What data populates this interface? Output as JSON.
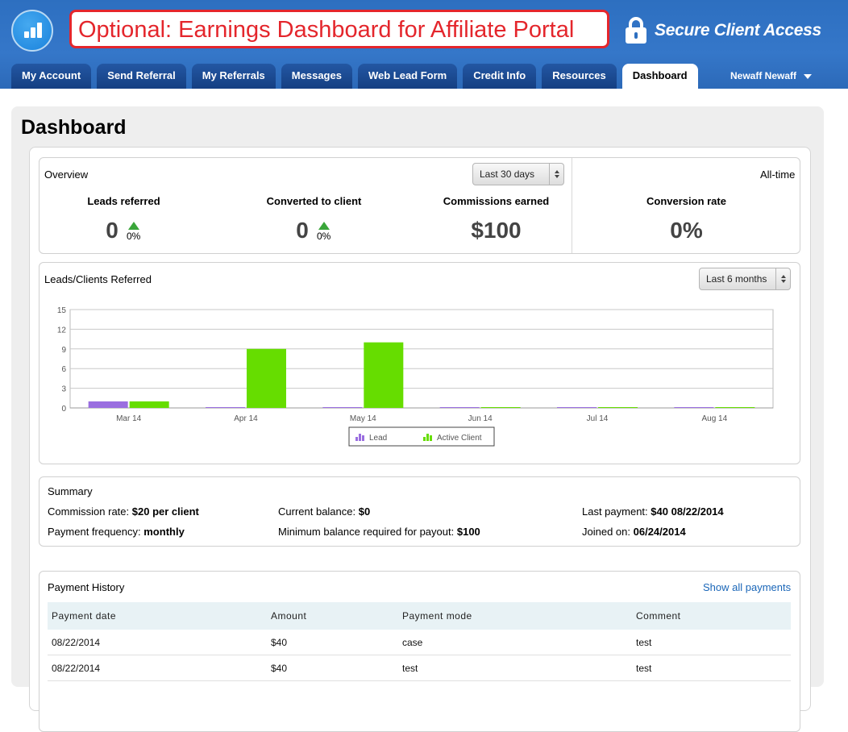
{
  "header": {
    "title": "Optional: Earnings Dashboard for Affiliate Portal",
    "secure_label": "Secure Client Access",
    "user_name": "Newaff Newaff"
  },
  "tabs": [
    {
      "label": "My Account"
    },
    {
      "label": "Send Referral"
    },
    {
      "label": "My Referrals"
    },
    {
      "label": "Messages"
    },
    {
      "label": "Web Lead Form"
    },
    {
      "label": "Credit Info"
    },
    {
      "label": "Resources"
    },
    {
      "label": "Dashboard",
      "active": true
    }
  ],
  "page_title": "Dashboard",
  "overview": {
    "label": "Overview",
    "period_select": "Last 30 days",
    "alltime_label": "All-time",
    "leads_referred": {
      "label": "Leads referred",
      "value": "0",
      "change": "0%"
    },
    "converted": {
      "label": "Converted to client",
      "value": "0",
      "change": "0%"
    },
    "commissions": {
      "label": "Commissions earned",
      "value": "$100"
    },
    "conversion_rate": {
      "label": "Conversion rate",
      "value": "0%"
    }
  },
  "chart": {
    "label": "Leads/Clients Referred",
    "period_select": "Last 6 months"
  },
  "chart_data": {
    "type": "bar",
    "categories": [
      "Mar 14",
      "Apr 14",
      "May 14",
      "Jun 14",
      "Jul 14",
      "Aug 14"
    ],
    "series": [
      {
        "name": "Lead",
        "values": [
          1,
          0,
          0,
          0,
          0,
          0
        ],
        "color": "#9a6ee0"
      },
      {
        "name": "Active Client",
        "values": [
          1,
          9,
          10,
          0,
          0,
          0
        ],
        "color": "#66dd00"
      }
    ],
    "ylim": [
      0,
      15
    ],
    "yticks": [
      0,
      3,
      6,
      9,
      12,
      15
    ],
    "grid": true,
    "legend": "bottom"
  },
  "summary": {
    "title": "Summary",
    "commission_rate_label": "Commission rate:",
    "commission_rate_value": "$20 per client",
    "payment_frequency_label": "Payment frequency:",
    "payment_frequency_value": "monthly",
    "current_balance_label": "Current balance:",
    "current_balance_value": "$0",
    "min_balance_label": "Minimum balance required for payout:",
    "min_balance_value": "$100",
    "last_payment_label": "Last payment:",
    "last_payment_value": "$40 08/22/2014",
    "joined_label": "Joined on:",
    "joined_value": "06/24/2014"
  },
  "payment_history": {
    "title": "Payment History",
    "show_all": "Show all payments",
    "columns": [
      "Payment date",
      "Amount",
      "Payment mode",
      "Comment"
    ],
    "rows": [
      [
        "08/22/2014",
        "$40",
        "case",
        "test"
      ],
      [
        "08/22/2014",
        "$40",
        "test",
        "test"
      ]
    ]
  },
  "colors": {
    "header_blue": "#2d6fc0",
    "tab_blue": "#1a4a94",
    "title_red": "#e4262c",
    "up_green": "#3aa63a"
  }
}
